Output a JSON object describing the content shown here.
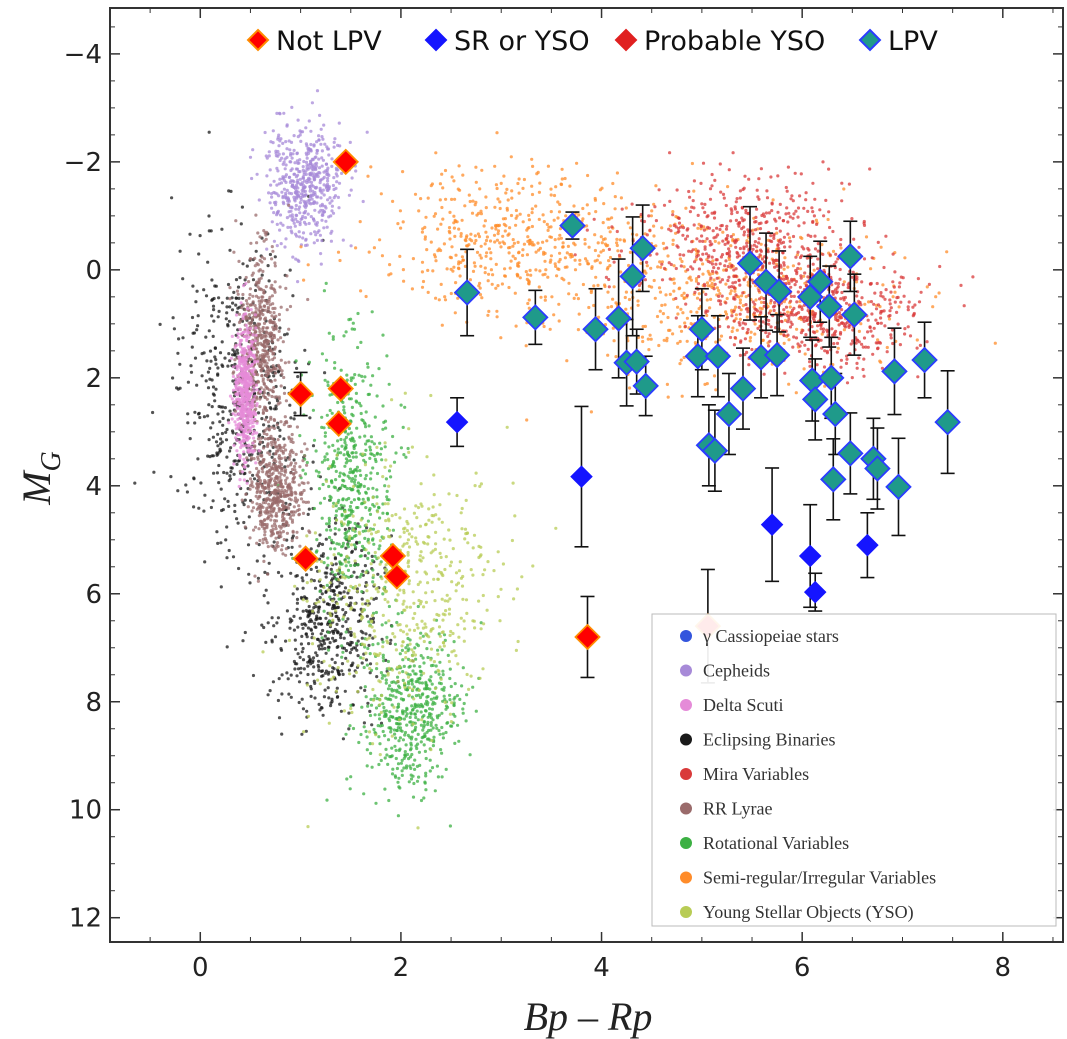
{
  "chart_data": {
    "type": "scatter",
    "title": "",
    "xlabel": "Bp – Rp",
    "ylabel": "M",
    "ylabel_sub": "G",
    "xlim": [
      -0.9,
      8.6
    ],
    "ylim": [
      12.45,
      -4.85
    ],
    "y_inverted": true,
    "grid": false,
    "x_ticks": [
      0,
      2,
      4,
      6,
      8
    ],
    "y_ticks": [
      -4,
      -2,
      0,
      2,
      4,
      6,
      8,
      10,
      12
    ],
    "x_tick_labels": [
      "0",
      "2",
      "4",
      "6",
      "8"
    ],
    "y_tick_labels": [
      "−4",
      "−2",
      "0",
      "2",
      "4",
      "6",
      "8",
      "10",
      "12"
    ],
    "top_legend": [
      {
        "label": "Not LPV",
        "fill": "#ff0000",
        "stroke": "#ff8c00"
      },
      {
        "label": "SR or YSO",
        "fill": "#1515ff",
        "stroke": "#1515ff"
      },
      {
        "label": "Probable YSO",
        "fill": "#e02020",
        "stroke": "#e02020"
      },
      {
        "label": "LPV",
        "fill": "#1f9a8a",
        "stroke": "#2b3cff"
      }
    ],
    "background_legend": [
      {
        "label": "γ Cassiopeiae stars",
        "color": "#3355dd"
      },
      {
        "label": "Cepheids",
        "color": "#a78ad8"
      },
      {
        "label": "Delta Scuti",
        "color": "#e58bd8"
      },
      {
        "label": "Eclipsing Binaries",
        "color": "#1a1a1a"
      },
      {
        "label": "Mira Variables",
        "color": "#d93a3a"
      },
      {
        "label": "RR Lyrae",
        "color": "#9a6b6b"
      },
      {
        "label": "Rotational Variables",
        "color": "#3cb043"
      },
      {
        "label": "Semi-regular/Irregular Variables",
        "color": "#ff8c2a"
      },
      {
        "label": "Young Stellar Objects (YSO)",
        "color": "#b8cc55"
      }
    ],
    "series": [
      {
        "name": "Not LPV",
        "points": [
          {
            "x": 1.45,
            "y": -2.0
          },
          {
            "x": 1.0,
            "y": 2.3,
            "yerr": 0.4
          },
          {
            "x": 1.4,
            "y": 2.2
          },
          {
            "x": 1.38,
            "y": 2.85
          },
          {
            "x": 1.05,
            "y": 5.35
          },
          {
            "x": 1.92,
            "y": 5.3
          },
          {
            "x": 1.96,
            "y": 5.68
          },
          {
            "x": 3.86,
            "y": 6.8,
            "yerr": 0.75
          },
          {
            "x": 5.06,
            "y": 6.6,
            "yerr": 1.05
          }
        ]
      },
      {
        "name": "SR or YSO",
        "points": [
          {
            "x": 2.56,
            "y": 2.82,
            "yerr": 0.45
          },
          {
            "x": 3.8,
            "y": 3.83,
            "yerr": 1.3
          },
          {
            "x": 5.7,
            "y": 4.72,
            "yerr": 1.05
          },
          {
            "x": 6.08,
            "y": 5.3,
            "yerr": 0.95
          },
          {
            "x": 6.13,
            "y": 5.97,
            "yerr": 0.35
          },
          {
            "x": 6.65,
            "y": 5.1,
            "yerr": 0.6
          }
        ]
      },
      {
        "name": "LPV",
        "points": [
          {
            "x": 3.71,
            "y": -0.82,
            "yerr": 0.25
          },
          {
            "x": 2.66,
            "y": 0.42,
            "yerr": 0.8
          },
          {
            "x": 3.34,
            "y": 0.88,
            "yerr": 0.5
          },
          {
            "x": 3.94,
            "y": 1.1,
            "yerr": 0.75
          },
          {
            "x": 4.17,
            "y": 0.9,
            "yerr": 1.1
          },
          {
            "x": 4.25,
            "y": 1.72,
            "yerr": 0.8
          },
          {
            "x": 4.31,
            "y": 0.12,
            "yerr": 1.1
          },
          {
            "x": 4.35,
            "y": 1.7,
            "yerr": 0.6
          },
          {
            "x": 4.41,
            "y": -0.4,
            "yerr": 0.8
          },
          {
            "x": 4.44,
            "y": 2.15,
            "yerr": 0.55
          },
          {
            "x": 4.96,
            "y": 1.6,
            "yerr": 0.75
          },
          {
            "x": 5.0,
            "y": 1.1,
            "yerr": 0.75
          },
          {
            "x": 5.07,
            "y": 3.25,
            "yerr": 0.75
          },
          {
            "x": 5.13,
            "y": 3.35,
            "yerr": 0.75
          },
          {
            "x": 5.16,
            "y": 1.6,
            "yerr": 0.75
          },
          {
            "x": 5.27,
            "y": 2.67,
            "yerr": 0.75
          },
          {
            "x": 5.41,
            "y": 2.2,
            "yerr": 0.75
          },
          {
            "x": 5.48,
            "y": -0.12,
            "yerr": 1.05
          },
          {
            "x": 5.59,
            "y": 1.62,
            "yerr": 0.75
          },
          {
            "x": 5.64,
            "y": 0.22,
            "yerr": 0.9
          },
          {
            "x": 5.75,
            "y": 1.58,
            "yerr": 0.75
          },
          {
            "x": 5.77,
            "y": 0.4,
            "yerr": 0.75
          },
          {
            "x": 6.08,
            "y": 0.5,
            "yerr": 0.75
          },
          {
            "x": 6.1,
            "y": 2.05,
            "yerr": 0.75
          },
          {
            "x": 6.13,
            "y": 2.4,
            "yerr": 0.75
          },
          {
            "x": 6.18,
            "y": 0.22,
            "yerr": 0.75
          },
          {
            "x": 6.27,
            "y": 0.68,
            "yerr": 0.75
          },
          {
            "x": 6.29,
            "y": 2.0,
            "yerr": 0.75
          },
          {
            "x": 6.31,
            "y": 3.88,
            "yerr": 0.75
          },
          {
            "x": 6.33,
            "y": 2.67,
            "yerr": 0.75
          },
          {
            "x": 6.48,
            "y": 3.4,
            "yerr": 0.75
          },
          {
            "x": 6.48,
            "y": -0.25,
            "yerr": 0.65
          },
          {
            "x": 6.52,
            "y": 0.83,
            "yerr": 0.75
          },
          {
            "x": 6.71,
            "y": 3.5,
            "yerr": 0.75
          },
          {
            "x": 6.75,
            "y": 3.68,
            "yerr": 0.75
          },
          {
            "x": 6.92,
            "y": 1.88,
            "yerr": 0.8
          },
          {
            "x": 6.96,
            "y": 4.02,
            "yerr": 0.9
          },
          {
            "x": 7.22,
            "y": 1.67,
            "yerr": 0.7
          },
          {
            "x": 7.45,
            "y": 2.82,
            "yerr": 0.95
          }
        ]
      }
    ],
    "background_clouds": [
      {
        "name": "Eclipsing Binaries",
        "color": "#1a1a1a",
        "cx": 0.4,
        "cy": 2.3,
        "sx": 0.55,
        "sy": 2.6
      },
      {
        "name": "Eclipsing Binaries",
        "color": "#1a1a1a",
        "cx": 1.25,
        "cy": 6.5,
        "sx": 0.5,
        "sy": 1.7
      },
      {
        "name": "Rotational Variables",
        "color": "#3cb043",
        "cx": 1.5,
        "cy": 3.8,
        "sx": 0.35,
        "sy": 2.2
      },
      {
        "name": "Rotational Variables",
        "color": "#3cb043",
        "cx": 2.1,
        "cy": 8.2,
        "sx": 0.45,
        "sy": 1.4
      },
      {
        "name": "Young Stellar Objects (YSO)",
        "color": "#b8cc55",
        "cx": 2.0,
        "cy": 6.0,
        "sx": 0.85,
        "sy": 2.2
      },
      {
        "name": "Cepheids",
        "color": "#a78ad8",
        "cx": 1.05,
        "cy": -1.6,
        "sx": 0.35,
        "sy": 1.0
      },
      {
        "name": "RR Lyrae",
        "color": "#9a6b6b",
        "cx": 0.6,
        "cy": 1.3,
        "sx": 0.2,
        "sy": 1.5
      },
      {
        "name": "RR Lyrae",
        "color": "#9a6b6b",
        "cx": 0.75,
        "cy": 4.1,
        "sx": 0.25,
        "sy": 1.0
      },
      {
        "name": "Delta Scuti",
        "color": "#e58bd8",
        "cx": 0.45,
        "cy": 2.3,
        "sx": 0.1,
        "sy": 1.1
      },
      {
        "name": "Semi-regular/Irregular Variables",
        "color": "#ff8c2a",
        "cx": 3.2,
        "cy": -0.6,
        "sx": 1.3,
        "sy": 1.2
      },
      {
        "name": "Semi-regular/Irregular Variables",
        "color": "#ff8c2a",
        "cx": 5.2,
        "cy": 0.5,
        "sx": 1.5,
        "sy": 1.3
      },
      {
        "name": "Mira Variables",
        "color": "#d93a3a",
        "cx": 5.4,
        "cy": -0.5,
        "sx": 1.0,
        "sy": 1.1
      },
      {
        "name": "Mira Variables",
        "color": "#d93a3a",
        "cx": 6.2,
        "cy": 0.8,
        "sx": 0.9,
        "sy": 0.9
      }
    ]
  }
}
